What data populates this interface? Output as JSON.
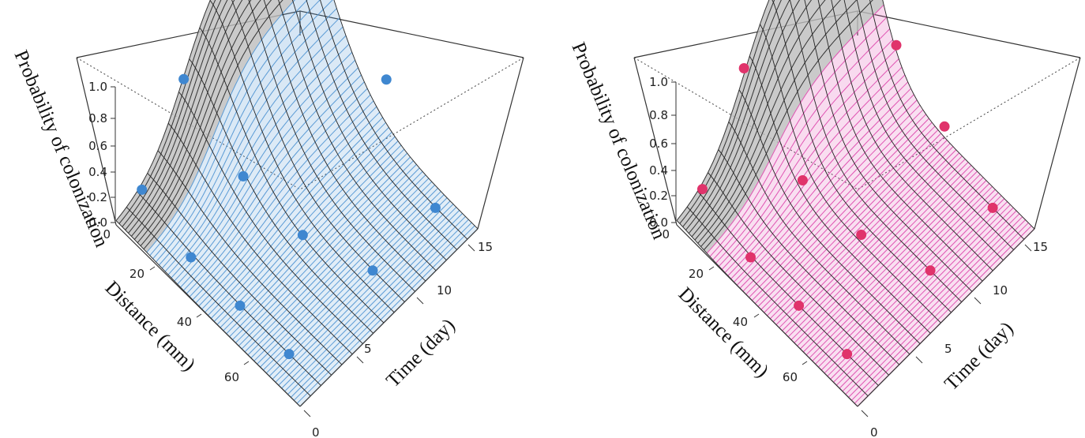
{
  "chart_data": [
    {
      "type": "surface",
      "panel": "left",
      "zlabel": "Probability of colonization",
      "xlabel": "Distance (mm)",
      "ylabel": "Time (day)",
      "z_ticks": [
        "0.0",
        "0.2",
        "0.4",
        "0.6",
        "0.8",
        "1.0"
      ],
      "x_ticks": [
        "0",
        "20",
        "40",
        "60"
      ],
      "y_ticks": [
        "0",
        "5",
        "10",
        "15"
      ],
      "xlim": [
        0,
        75
      ],
      "ylim": [
        0,
        17
      ],
      "zlim": [
        0,
        1.15
      ],
      "surface_color": "#5b9bd5",
      "point_color": "#3f87d0",
      "points": [
        {
          "distance": 2,
          "time": 16,
          "p": 1.0
        },
        {
          "distance": 2,
          "time": 11,
          "p": 0.77
        },
        {
          "distance": 2,
          "time": 6,
          "p": 0.55
        },
        {
          "distance": 2,
          "time": 2,
          "p": 0.12
        },
        {
          "distance": 22,
          "time": 16,
          "p": 0.85
        },
        {
          "distance": 22,
          "time": 7,
          "p": 0.18
        },
        {
          "distance": 22,
          "time": 2,
          "p": 0.0
        },
        {
          "distance": 42,
          "time": 16,
          "p": 0.5
        },
        {
          "distance": 42,
          "time": 8,
          "p": 0.05
        },
        {
          "distance": 42,
          "time": 2,
          "p": 0.0
        },
        {
          "distance": 62,
          "time": 16,
          "p": 0.0
        },
        {
          "distance": 62,
          "time": 10,
          "p": 0.0
        },
        {
          "distance": 62,
          "time": 2,
          "p": 0.0
        }
      ]
    },
    {
      "type": "surface",
      "panel": "right",
      "zlabel": "Probability of colonization",
      "xlabel": "Distance (mm)",
      "ylabel": "Time (day)",
      "z_ticks": [
        "0.0",
        "0.2",
        "0.4",
        "0.6",
        "0.8",
        "1.0"
      ],
      "x_ticks": [
        "0",
        "20",
        "40",
        "60"
      ],
      "y_ticks": [
        "0",
        "5",
        "10",
        "15"
      ],
      "xlim": [
        0,
        75
      ],
      "ylim": [
        0,
        17
      ],
      "zlim": [
        0,
        1.15
      ],
      "surface_color": "#e055b3",
      "point_color": "#e0336b",
      "points": [
        {
          "distance": 2,
          "time": 16,
          "p": 1.0
        },
        {
          "distance": 2,
          "time": 11,
          "p": 0.9
        },
        {
          "distance": 2,
          "time": 6,
          "p": 0.6
        },
        {
          "distance": 2,
          "time": 2,
          "p": 0.12
        },
        {
          "distance": 22,
          "time": 16,
          "p": 0.4
        },
        {
          "distance": 22,
          "time": 7,
          "p": 0.15
        },
        {
          "distance": 22,
          "time": 2,
          "p": 0.0
        },
        {
          "distance": 42,
          "time": 16,
          "p": 0.2
        },
        {
          "distance": 42,
          "time": 8,
          "p": 0.05
        },
        {
          "distance": 42,
          "time": 2,
          "p": 0.0
        },
        {
          "distance": 62,
          "time": 16,
          "p": 0.0
        },
        {
          "distance": 62,
          "time": 10,
          "p": 0.0
        },
        {
          "distance": 62,
          "time": 2,
          "p": 0.0
        }
      ]
    }
  ]
}
